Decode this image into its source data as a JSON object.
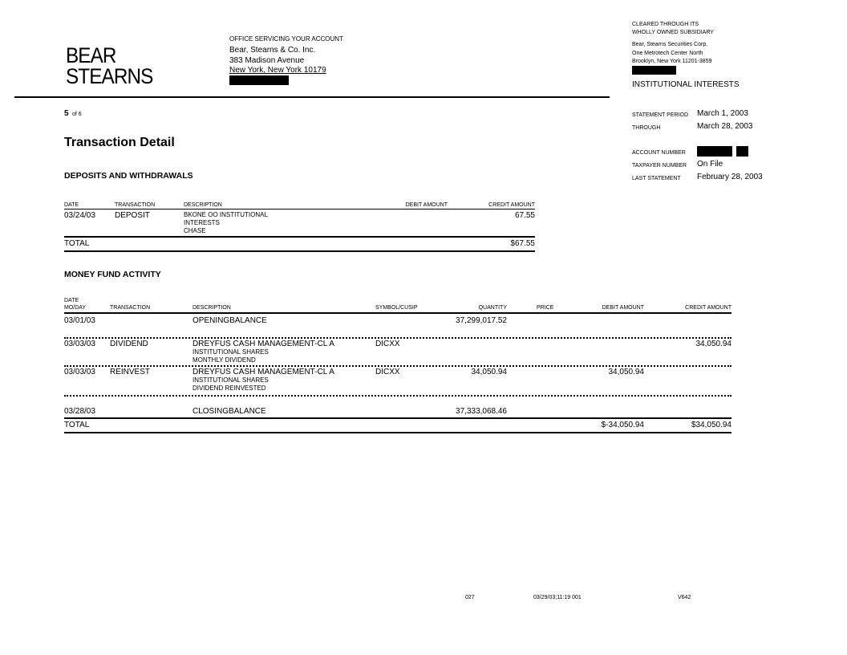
{
  "logo": {
    "line1": "BEAR",
    "line2": "STEARNS"
  },
  "office": {
    "heading": "OFFICE SERVICING YOUR ACCOUNT",
    "name": "Bear, Stearns & Co. Inc.",
    "street": "383 Madison Avenue",
    "city": "New York, New York  10179"
  },
  "clearing": {
    "line1": "CLEARED  THROUGH  ITS",
    "line2": "WHOLLY  OWNED  SUBSIDIARY",
    "name": "Bear, Stearns Securities  Corp.",
    "street": "One Metrotech  Center North",
    "city": "Brooklyn,  New York  11201-3859",
    "account_name": "INSTITUTIONAL  INTERESTS"
  },
  "page": {
    "current": "5",
    "of_label": "of 6"
  },
  "statement": {
    "period_label": "STATEMENT  PERIOD",
    "period_value": "March  1, 2003",
    "through_label": "THROUGH",
    "through_value": "March  28, 2003",
    "account_label": "ACCOUNT  NUMBER",
    "taxpayer_label": "TAXPAYER  NUMBER",
    "taxpayer_value": "On File",
    "last_label": "LAST STATEMENT",
    "last_value": "February  28, 2003"
  },
  "title": "Transaction Detail",
  "deposits": {
    "heading": "DEPOSITS AND WITHDRAWALS",
    "headers": {
      "date": "DATE",
      "transaction": "TRANSACTION",
      "description": "DESCRIPTION",
      "debit": "DEBIT AMOUNT",
      "credit": "CREDIT AMOUNT"
    },
    "rows": [
      {
        "date": "03/24/03",
        "transaction": "DEPOSIT",
        "description": [
          "BKONE OO INSTITUTIONAL",
          "INTERESTS",
          "CHASE"
        ],
        "debit": "",
        "credit": "67.55"
      }
    ],
    "total_label": "TOTAL",
    "total_credit": "$67.55"
  },
  "money_fund": {
    "heading": "MONEY FUND ACTIVITY",
    "headers": {
      "date1": "DATE",
      "date2": "MO/DAY",
      "transaction": "TRANSACTION",
      "description": "DESCRIPTION",
      "symbol": "SYMBOL/CUSIP",
      "quantity": "QUANTITY",
      "price": "PRICE",
      "debit": "DEBIT AMOUNT",
      "credit": "CREDIT AMOUNT"
    },
    "opening": {
      "date": "03/01/03",
      "description": "OPENINGBALANCE",
      "quantity": "37,299,017.52"
    },
    "rows": [
      {
        "date": "03/03/03",
        "transaction": "DIVIDEND",
        "description": [
          "DREYFUS CASH MANAGEMENT-CL A",
          "INSTITUTIONAL  SHARES",
          "MONTHLY DIVIDEND"
        ],
        "symbol": "DICXX",
        "quantity": "",
        "price": "",
        "debit": "",
        "credit": "34,050.94"
      },
      {
        "date": "03/03/03",
        "transaction": "REINVEST",
        "description": [
          "DREYFUS CASH MANAGEMENT-CL A",
          "INSTITUTIONAL  SHARES",
          "DIVIDEND REINVESTED"
        ],
        "symbol": "DICXX",
        "quantity": "34,050.94",
        "price": "",
        "debit": "34,050.94",
        "credit": ""
      }
    ],
    "closing": {
      "date": "03/28/03",
      "description": "CLOSINGBALANCE",
      "quantity": "37,333,068.46"
    },
    "total_label": "TOTAL",
    "total_debit": "$-34,050.94",
    "total_credit": "$34,050.94"
  },
  "footer": {
    "code1": "027",
    "stamp": "03/29/03;11:19  001",
    "code2": "V642"
  }
}
